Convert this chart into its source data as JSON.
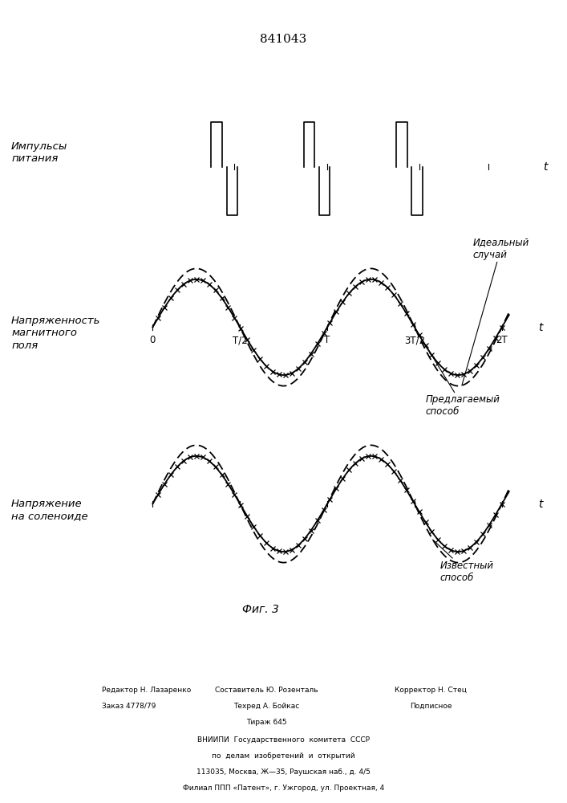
{
  "patent_number": "841043",
  "fig_label": "Фиг. 3",
  "panel1_label": "Импульсы\nпитания",
  "panel2_label": "Напряженность\nмагнитного\nполя",
  "panel3_label": "Напряжение\nна соленоиде",
  "panel2_annot1": "Идеальный\nслучай",
  "panel2_annot2": "Предлагаемый\nспособ",
  "panel3_annot1": "Известный\nспособ",
  "t_label": "t",
  "footer_line1_left": "Редактор Н. Лазаренко",
  "footer_line2_left": "Заказ 4778/79",
  "footer_line1_mid": "Составитель Ю. Розенталь",
  "footer_line2_mid": "Техред А. Бойкас",
  "footer_line3_mid": "Тираж 645",
  "footer_line1_right": "Корректор Н. Стец",
  "footer_line2_right": "Подписное",
  "footer_vnipi1": "ВНИИПИ  Государственного  комитета  СССР",
  "footer_vnipi2": "по  делам  изобретений  и  открытий",
  "footer_vnipi3": "113035, Москва, Ж—35, Раушская наб., д. 4/5",
  "footer_vnipi4": "Филиал ППП «Патент», г. Ужгород, ул. Проектная, 4"
}
